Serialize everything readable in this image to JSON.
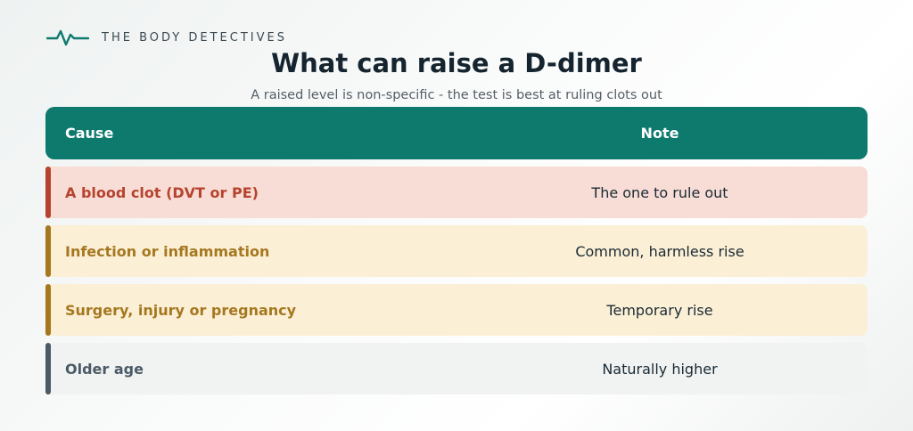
{
  "brand": {
    "name": "THE BODY DETECTIVES",
    "logo_icon": "heartbeat-line-icon",
    "logo_color": "#0e7a6e"
  },
  "title": "What can raise a D-dimer",
  "subtitle": "A raised level is non-specific - the test is best at ruling clots out",
  "table": {
    "headers": {
      "cause": "Cause",
      "note": "Note"
    },
    "header_color": "#0e7a6e",
    "rows": [
      {
        "cause": "A blood clot (DVT or PE)",
        "note": "The one to rule out",
        "accent": "#b5432e",
        "background": "#f8ddd6"
      },
      {
        "cause": "Infection or inflammation",
        "note": "Common, harmless rise",
        "accent": "#a5781f",
        "background": "#fbefd6"
      },
      {
        "cause": "Surgery, injury or pregnancy",
        "note": "Temporary rise",
        "accent": "#a5781f",
        "background": "#fbefd6"
      },
      {
        "cause": "Older age",
        "note": "Naturally higher",
        "accent": "#4b5a66",
        "background": "#f1f3f3"
      }
    ]
  }
}
